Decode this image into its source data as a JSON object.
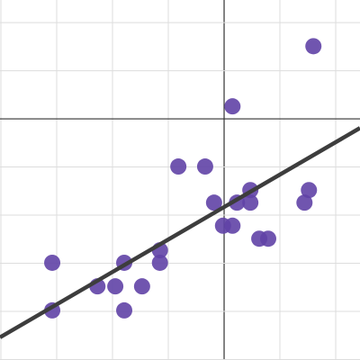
{
  "chart_data": {
    "type": "scatter",
    "x": [
      1.6,
      0.15,
      -0.82,
      -0.34,
      -0.18,
      0.23,
      0.47,
      0.47,
      1.52,
      1.44,
      -0.02,
      0.15,
      0.63,
      0.79,
      -1.15,
      -1.15,
      -1.79,
      -3.08,
      -2.27,
      -1.95,
      -1.47,
      -3.08,
      -1.79
    ],
    "values": [
      1.51,
      0.26,
      -0.99,
      -0.99,
      -1.74,
      -1.74,
      -1.48,
      -1.74,
      -1.48,
      -1.74,
      -2.22,
      -2.22,
      -2.49,
      -2.49,
      -2.73,
      -2.99,
      -2.99,
      -2.99,
      -3.48,
      -3.48,
      -3.48,
      -3.98,
      -3.98
    ],
    "color": "#6042a6",
    "trendline": {
      "x": [
        -4.016,
        2.435
      ],
      "y": [
        -4.54,
        -0.19
      ],
      "color": "#3d3d3d"
    },
    "xlim": [
      -4.016,
      2.435
    ],
    "ylim": [
      -5.01,
      2.47
    ],
    "xticks": [
      -4,
      -3,
      -2,
      -1,
      0,
      1,
      2
    ],
    "yticks": [
      -5,
      -4,
      -3,
      -2,
      -1,
      0,
      1,
      2
    ],
    "grid": true
  }
}
